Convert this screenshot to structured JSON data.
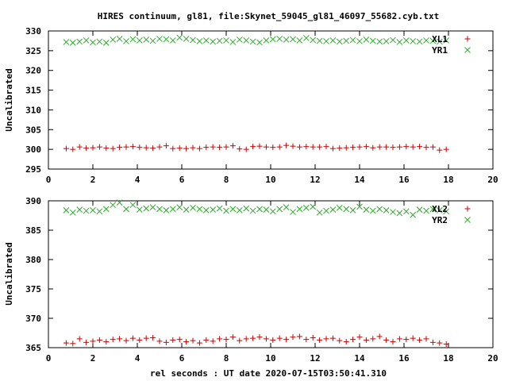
{
  "header": {
    "title": "HIRES continuum, gl81, file:Skynet_59045_gl81_46097_55682.cyb.txt",
    "xlabel": "rel seconds : UT date 2020-07-15T03:50:41.310"
  },
  "colors": {
    "red": "#cc0000",
    "green": "#2ea82e",
    "axis": "#000000"
  },
  "chart_data": [
    {
      "type": "scatter",
      "title": "HIRES continuum, gl81, file:Skynet_59045_gl81_46097_55682.cyb.txt",
      "ylabel": "Uncalibrated",
      "xlim": [
        0,
        20
      ],
      "ylim": [
        295,
        330
      ],
      "x_ticks": [
        0,
        2,
        4,
        6,
        8,
        10,
        12,
        14,
        16,
        18,
        20
      ],
      "y_ticks": [
        295,
        300,
        305,
        310,
        315,
        320,
        325,
        330
      ],
      "legend": "top-right",
      "grid": false,
      "series": [
        {
          "name": "XL1",
          "marker": "plus",
          "color": "#cc0000",
          "x": [
            0.8,
            1.1,
            1.4,
            1.7,
            2.0,
            2.3,
            2.6,
            2.9,
            3.2,
            3.5,
            3.8,
            4.1,
            4.4,
            4.7,
            5.0,
            5.3,
            5.6,
            5.9,
            6.2,
            6.5,
            6.8,
            7.1,
            7.4,
            7.7,
            8.0,
            8.3,
            8.6,
            8.9,
            9.2,
            9.5,
            9.8,
            10.1,
            10.4,
            10.7,
            11.0,
            11.3,
            11.6,
            11.9,
            12.2,
            12.5,
            12.8,
            13.1,
            13.4,
            13.7,
            14.0,
            14.3,
            14.6,
            14.9,
            15.2,
            15.5,
            15.8,
            16.1,
            16.4,
            16.7,
            17.0,
            17.3,
            17.6,
            17.9
          ],
          "y": [
            300.2,
            300.0,
            300.6,
            300.3,
            300.4,
            300.6,
            300.3,
            300.2,
            300.5,
            300.6,
            300.7,
            300.5,
            300.4,
            300.3,
            300.6,
            300.9,
            300.2,
            300.3,
            300.2,
            300.4,
            300.2,
            300.5,
            300.6,
            300.5,
            300.6,
            300.9,
            300.1,
            300.0,
            300.7,
            300.8,
            300.6,
            300.5,
            300.6,
            301.0,
            300.8,
            300.6,
            300.7,
            300.6,
            300.6,
            300.7,
            300.2,
            300.3,
            300.4,
            300.5,
            300.6,
            300.7,
            300.4,
            300.6,
            300.6,
            300.5,
            300.6,
            300.7,
            300.6,
            300.7,
            300.5,
            300.6,
            299.8,
            300.0
          ]
        },
        {
          "name": "YR1",
          "marker": "cross",
          "color": "#2ea82e",
          "x": [
            0.8,
            1.1,
            1.4,
            1.7,
            2.0,
            2.3,
            2.6,
            2.9,
            3.2,
            3.5,
            3.8,
            4.1,
            4.4,
            4.7,
            5.0,
            5.3,
            5.6,
            5.9,
            6.2,
            6.5,
            6.8,
            7.1,
            7.4,
            7.7,
            8.0,
            8.3,
            8.6,
            8.9,
            9.2,
            9.5,
            9.8,
            10.1,
            10.4,
            10.7,
            11.0,
            11.3,
            11.6,
            11.9,
            12.2,
            12.5,
            12.8,
            13.1,
            13.4,
            13.7,
            14.0,
            14.3,
            14.6,
            14.9,
            15.2,
            15.5,
            15.8,
            16.1,
            16.4,
            16.7,
            17.0,
            17.3,
            17.6,
            17.9
          ],
          "y": [
            327.2,
            327.0,
            327.3,
            327.6,
            327.1,
            327.3,
            327.0,
            327.8,
            328.0,
            327.4,
            327.9,
            327.6,
            327.8,
            327.5,
            328.0,
            327.9,
            327.6,
            328.3,
            328.0,
            327.7,
            327.4,
            327.6,
            327.3,
            327.5,
            327.6,
            327.2,
            327.8,
            327.6,
            327.3,
            327.1,
            327.6,
            327.9,
            328.0,
            327.8,
            327.9,
            327.6,
            328.2,
            327.7,
            327.5,
            327.4,
            327.6,
            327.3,
            327.5,
            327.7,
            327.4,
            327.8,
            327.5,
            327.3,
            327.4,
            327.7,
            327.2,
            327.6,
            327.4,
            327.3,
            327.6,
            327.5,
            327.3,
            327.6
          ]
        }
      ]
    },
    {
      "type": "scatter",
      "title": "",
      "xlabel": "rel seconds : UT date 2020-07-15T03:50:41.310",
      "ylabel": "Uncalibrated",
      "xlim": [
        0,
        20
      ],
      "ylim": [
        365,
        390
      ],
      "x_ticks": [
        0,
        2,
        4,
        6,
        8,
        10,
        12,
        14,
        16,
        18,
        20
      ],
      "y_ticks": [
        365,
        370,
        375,
        380,
        385,
        390
      ],
      "legend": "top-right",
      "grid": false,
      "series": [
        {
          "name": "XL2",
          "marker": "plus",
          "color": "#cc0000",
          "x": [
            0.8,
            1.1,
            1.4,
            1.7,
            2.0,
            2.3,
            2.6,
            2.9,
            3.2,
            3.5,
            3.8,
            4.1,
            4.4,
            4.7,
            5.0,
            5.3,
            5.6,
            5.9,
            6.2,
            6.5,
            6.8,
            7.1,
            7.4,
            7.7,
            8.0,
            8.3,
            8.6,
            8.9,
            9.2,
            9.5,
            9.8,
            10.1,
            10.4,
            10.7,
            11.0,
            11.3,
            11.6,
            11.9,
            12.2,
            12.5,
            12.8,
            13.1,
            13.4,
            13.7,
            14.0,
            14.3,
            14.6,
            14.9,
            15.2,
            15.5,
            15.8,
            16.1,
            16.4,
            16.7,
            17.0,
            17.3,
            17.6,
            17.9
          ],
          "y": [
            365.8,
            365.7,
            366.5,
            365.9,
            366.1,
            366.3,
            366.0,
            366.4,
            366.5,
            366.2,
            366.6,
            366.3,
            366.6,
            366.7,
            366.1,
            365.9,
            366.3,
            366.4,
            366.0,
            366.2,
            365.8,
            366.3,
            366.1,
            366.5,
            366.4,
            366.8,
            366.2,
            366.5,
            366.6,
            366.8,
            366.5,
            366.3,
            366.6,
            366.4,
            366.8,
            366.9,
            366.4,
            366.7,
            366.3,
            366.5,
            366.6,
            366.2,
            366.0,
            366.4,
            366.8,
            366.3,
            366.5,
            366.9,
            366.3,
            366.0,
            366.5,
            366.4,
            366.6,
            366.3,
            366.5,
            365.9,
            365.8,
            365.6
          ]
        },
        {
          "name": "YR2",
          "marker": "cross",
          "color": "#2ea82e",
          "x": [
            0.8,
            1.1,
            1.4,
            1.7,
            2.0,
            2.3,
            2.6,
            2.9,
            3.2,
            3.5,
            3.8,
            4.1,
            4.4,
            4.7,
            5.0,
            5.3,
            5.6,
            5.9,
            6.2,
            6.5,
            6.8,
            7.1,
            7.4,
            7.7,
            8.0,
            8.3,
            8.6,
            8.9,
            9.2,
            9.5,
            9.8,
            10.1,
            10.4,
            10.7,
            11.0,
            11.3,
            11.6,
            11.9,
            12.2,
            12.5,
            12.8,
            13.1,
            13.4,
            13.7,
            14.0,
            14.3,
            14.6,
            14.9,
            15.2,
            15.5,
            15.8,
            16.1,
            16.4,
            16.7,
            17.0,
            17.3,
            17.6,
            17.9
          ],
          "y": [
            388.4,
            388.0,
            388.5,
            388.3,
            388.4,
            388.2,
            388.6,
            389.3,
            389.7,
            388.6,
            389.3,
            388.5,
            388.7,
            388.9,
            388.6,
            388.4,
            388.6,
            388.9,
            388.5,
            388.8,
            388.6,
            388.4,
            388.5,
            388.7,
            388.3,
            388.6,
            388.4,
            388.7,
            388.3,
            388.6,
            388.5,
            388.2,
            388.6,
            388.9,
            388.1,
            388.6,
            388.8,
            389.0,
            388.0,
            388.3,
            388.5,
            388.8,
            388.6,
            388.4,
            389.0,
            388.5,
            388.3,
            388.6,
            388.4,
            388.1,
            387.9,
            388.2,
            387.6,
            388.5,
            388.3,
            388.6,
            388.4,
            388.2
          ]
        }
      ]
    }
  ]
}
